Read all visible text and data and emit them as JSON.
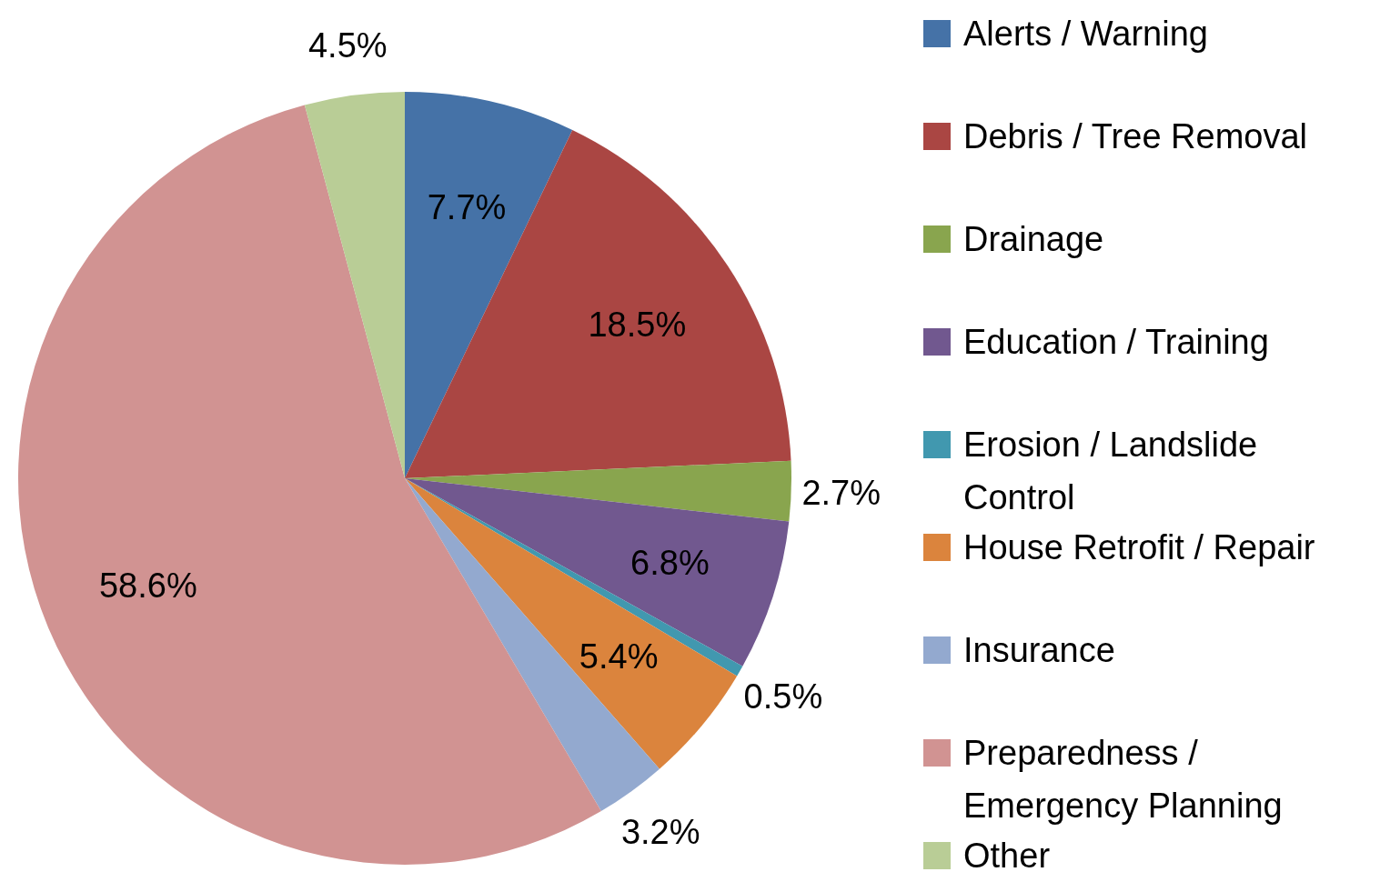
{
  "chart_data": {
    "type": "pie",
    "categories": [
      "Alerts / Warning",
      "Debris / Tree Removal",
      "Drainage",
      "Education / Training",
      "Erosion / Landslide Control",
      "House Retrofit / Repair",
      "Insurance",
      "Preparedness / Emergency Planning",
      "Other"
    ],
    "values": [
      7.7,
      18.5,
      2.7,
      6.8,
      0.5,
      5.4,
      3.2,
      58.6,
      4.5
    ],
    "value_labels": [
      "7.7%",
      "18.5%",
      "2.7%",
      "6.8%",
      "0.5%",
      "5.4%",
      "3.2%",
      "58.6%",
      "4.5%"
    ],
    "colors": [
      "#4572a7",
      "#aa4643",
      "#89a54e",
      "#71588f",
      "#4198af",
      "#db843d",
      "#93a9cf",
      "#d19392",
      "#b9cd96"
    ],
    "legend": "right"
  }
}
